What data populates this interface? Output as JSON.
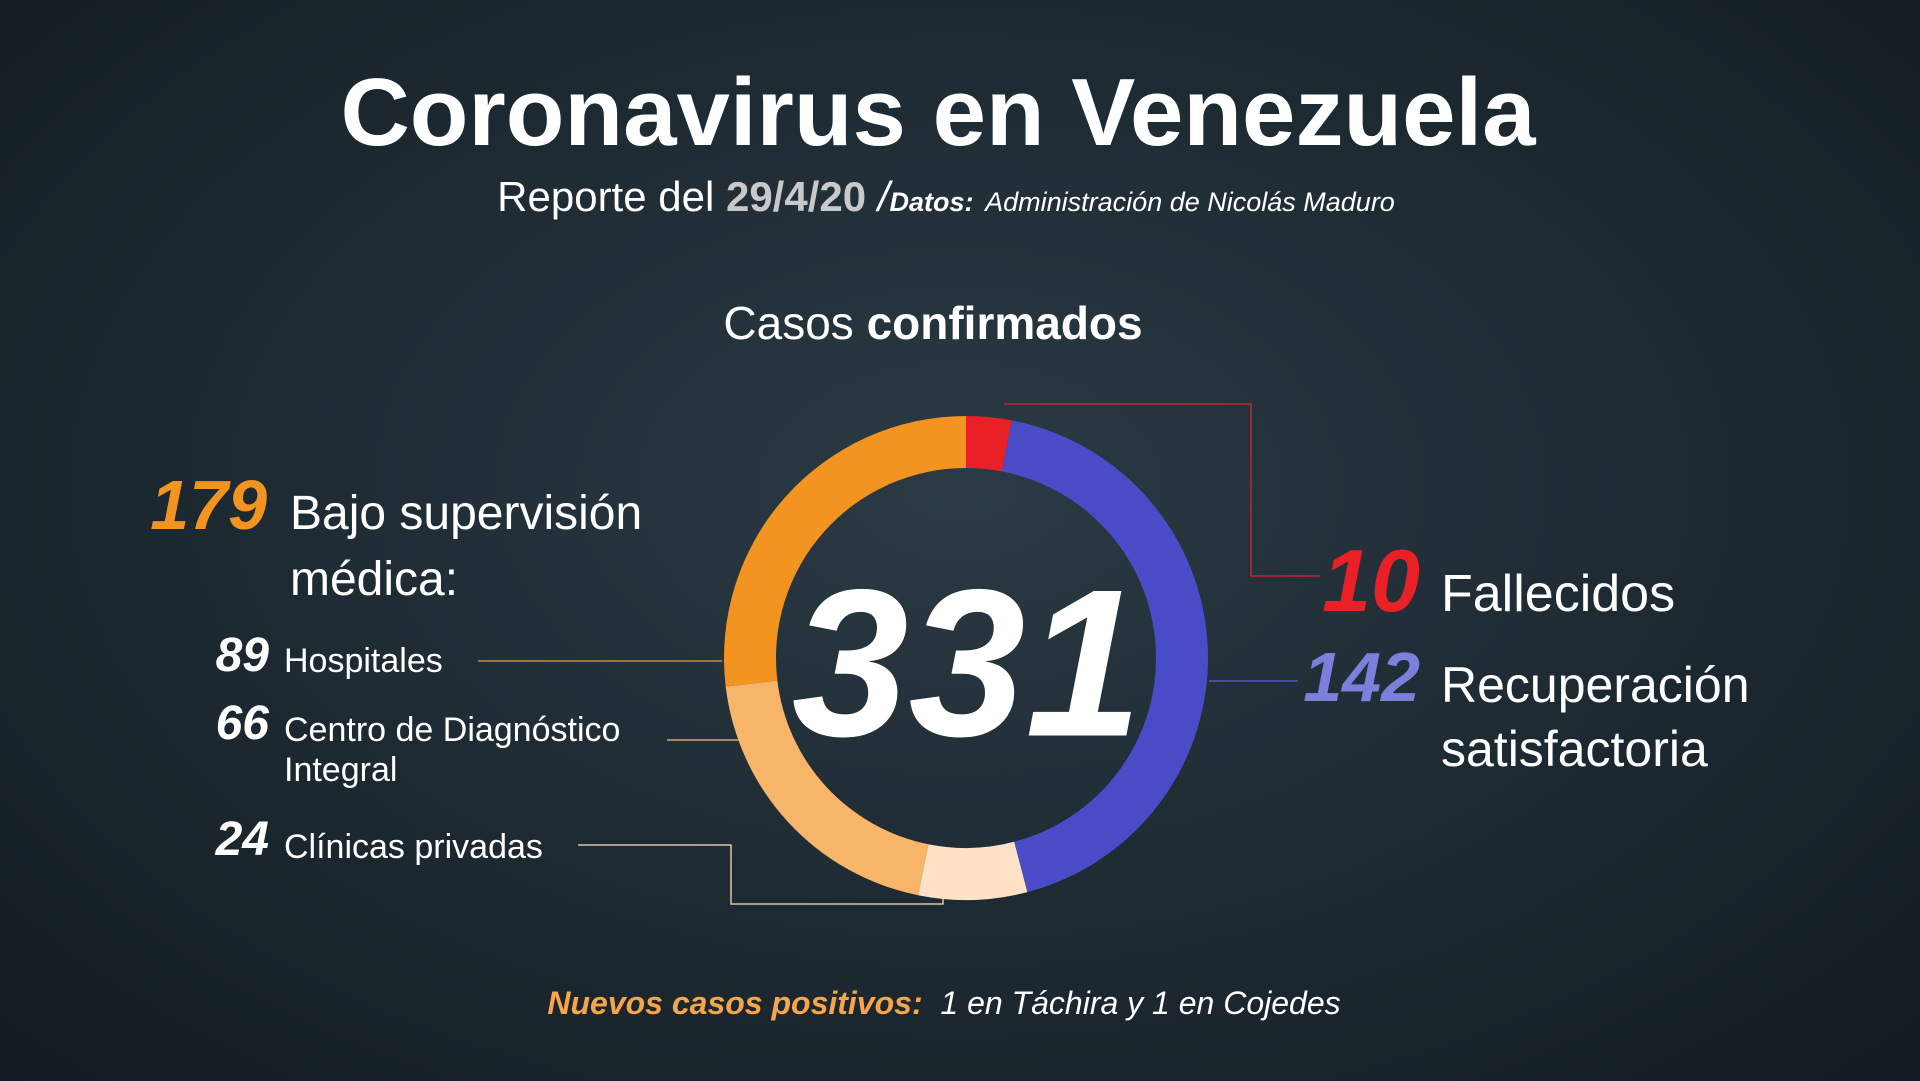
{
  "chart_data": {
    "type": "donut",
    "title": "Coronavirus en Venezuela",
    "report": {
      "label": "Reporte del",
      "date": "29/4/20",
      "separator": "/"
    },
    "source": {
      "label": "Datos:",
      "text": "Administración de Nicolás Maduro"
    },
    "heading": [
      "Casos",
      "confirmados"
    ],
    "total": 331,
    "categories": [
      "Fallecidos",
      "Recuperación satisfactoria",
      "Clínicas privadas",
      "Centro de Diagnóstico Integral",
      "Hospitales"
    ],
    "values": [
      10,
      142,
      24,
      66,
      89
    ],
    "colors": [
      "#e92126",
      "#4a4bc6",
      "#fde2c6",
      "#f7b56a",
      "#f39320"
    ],
    "group": {
      "value": 179,
      "label": "Bajo supervisión médica:"
    },
    "footer": {
      "label": "Nuevos casos positivos:",
      "text": "1 en Táchira y 1 en Cojedes"
    }
  }
}
